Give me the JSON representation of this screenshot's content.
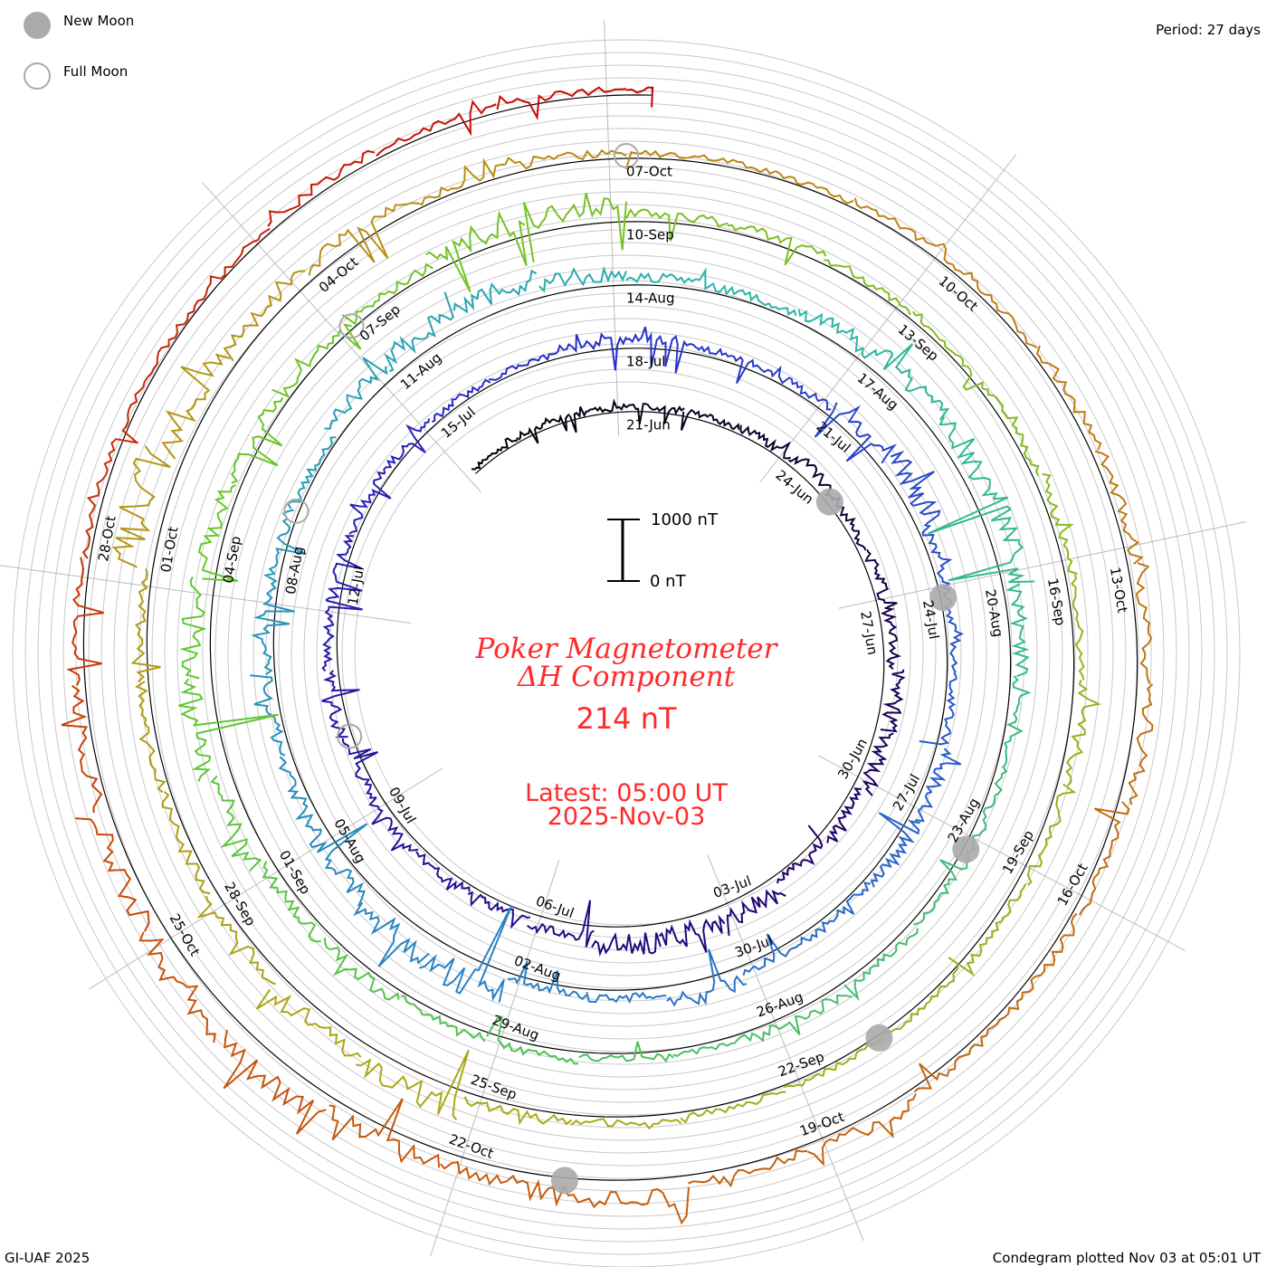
{
  "legend": {
    "new_moon": "New Moon",
    "full_moon": "Full Moon"
  },
  "period_label": "Period: 27 days",
  "footer_left": "GI-UAF 2025",
  "footer_right": "Condegram plotted Nov 03 at 05:01 UT",
  "scale_bar": {
    "top_label": "1000 nT",
    "bottom_label": "0 nT",
    "top_value": 1000,
    "bottom_value": 0
  },
  "center": {
    "title_line1": "Poker Magnetometer",
    "title_line2": "ΔH Component",
    "current_value": "214 nT",
    "latest_line1": "Latest: 05:00 UT",
    "latest_line2": "2025-Nov-03"
  },
  "colors": {
    "text_red": "#ff2a2a",
    "grid": "#bdbdbd",
    "baseline": "#000000",
    "moon": "#aaaaaa"
  },
  "chart_data": {
    "type": "line",
    "subtype": "spiral condegram",
    "title": "Poker Magnetometer ΔH Component",
    "units": "nT",
    "period_days": 27,
    "reference_date": "21-Jun",
    "start_day": -3,
    "end_day": 135.2,
    "date_labels": [
      "21-Jun",
      "24-Jun",
      "27-Jun",
      "30-Jun",
      "03-Jul",
      "06-Jul",
      "09-Jul",
      "12-Jul",
      "15-Jul",
      "18-Jul",
      "21-Jul",
      "24-Jul",
      "27-Jul",
      "30-Jul",
      "02-Aug",
      "05-Aug",
      "08-Aug",
      "11-Aug",
      "14-Aug",
      "17-Aug",
      "20-Aug",
      "23-Aug",
      "26-Aug",
      "29-Aug",
      "01-Sep",
      "04-Sep",
      "07-Sep",
      "10-Sep",
      "13-Sep",
      "16-Sep",
      "19-Sep",
      "22-Sep",
      "25-Sep",
      "28-Sep",
      "01-Oct",
      "04-Oct",
      "07-Oct",
      "10-Oct",
      "13-Oct",
      "16-Oct",
      "19-Oct",
      "22-Oct",
      "25-Oct",
      "28-Oct"
    ],
    "date_label_step_days": 3,
    "new_moon_days": [
      4,
      33,
      63,
      92,
      122
    ],
    "full_moon_days": [
      19,
      49,
      78,
      108
    ],
    "daily_dH_nT": [
      150,
      160,
      180,
      200,
      220,
      260,
      420,
      300,
      350,
      380,
      520,
      460,
      300,
      250,
      620,
      580,
      700,
      400,
      300,
      280,
      350,
      260,
      420,
      380,
      300,
      280,
      250,
      220,
      200,
      300,
      340,
      260,
      240,
      380,
      700,
      300,
      260,
      250,
      400,
      420,
      280,
      260,
      520,
      300,
      250,
      900,
      800,
      600,
      400,
      350,
      300,
      280,
      260,
      500,
      650,
      700,
      500,
      300,
      250,
      520,
      700,
      600,
      800,
      450,
      300,
      280,
      260,
      300,
      350,
      250,
      200,
      300,
      250,
      400,
      420,
      650,
      900,
      700,
      500,
      380,
      300,
      260,
      480,
      600,
      300,
      280,
      200,
      180,
      250,
      300,
      260,
      400,
      350,
      250,
      200,
      180,
      220,
      260,
      300,
      750,
      680,
      400,
      350,
      300,
      280,
      1100,
      700,
      500,
      450,
      300,
      250,
      200,
      180,
      260,
      220,
      300,
      380,
      420,
      500,
      320,
      300,
      260,
      420,
      250,
      700,
      650,
      500,
      900,
      800,
      600,
      400,
      300,
      250,
      200,
      180,
      300,
      250,
      220,
      214
    ]
  }
}
